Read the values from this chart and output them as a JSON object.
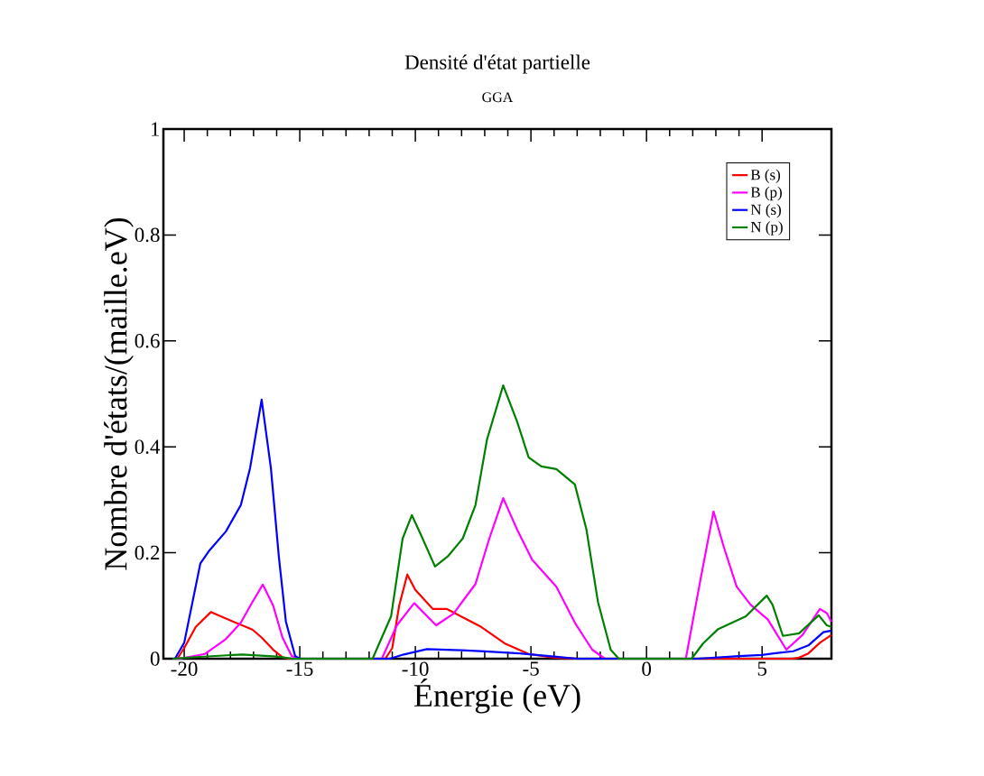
{
  "chart_data": {
    "type": "line",
    "title": "Densité d'état partielle",
    "subtitle": "GGA",
    "xlabel": "Énergie (eV)",
    "ylabel": "Nombre d'états/(maille.eV)",
    "xlim": [
      -20.9,
      8
    ],
    "ylim": [
      0,
      1
    ],
    "xticks": [
      -20,
      -15,
      -10,
      -5,
      0,
      5
    ],
    "yticks": [
      0,
      0.2,
      0.4,
      0.6,
      0.8,
      1
    ],
    "legend": "top right",
    "marker": "none",
    "line_style": "solid",
    "series": [
      {
        "name": "B (s)",
        "color": "#ff0000",
        "x": [
          -20.5,
          -20.3,
          -20,
          -19.5,
          -18.85,
          -18.1,
          -17.05,
          -16.65,
          -16.15,
          -15.75,
          -15.5,
          -11.3,
          -11,
          -10.7,
          -10.35,
          -10,
          -9.25,
          -8.65,
          -7.15,
          -6.1,
          -5.1,
          -4,
          -3,
          6.3,
          6.6,
          7,
          7.5,
          8
        ],
        "values": [
          0,
          0,
          0.02,
          0.06,
          0.088,
          0.074,
          0.055,
          0.04,
          0.017,
          0.003,
          0,
          0,
          0.02,
          0.1,
          0.159,
          0.13,
          0.094,
          0.094,
          0.06,
          0.028,
          0.009,
          0.002,
          0,
          0,
          0.002,
          0.01,
          0.03,
          0.045
        ]
      },
      {
        "name": "B (p)",
        "color": "#ff00ff",
        "x": [
          -20.5,
          -20.2,
          -19.1,
          -18.2,
          -17.55,
          -17.05,
          -16.6,
          -16.15,
          -15.75,
          -15.35,
          -15,
          -11.45,
          -10.8,
          -10.05,
          -9.1,
          -8.35,
          -7.4,
          -6.8,
          -6.2,
          -5.6,
          -4.95,
          -3.9,
          -3.1,
          -2.35,
          -1.8,
          1.7,
          2.35,
          2.9,
          3.35,
          3.9,
          4.5,
          5.25,
          6.05,
          6.75,
          7.5,
          7.8,
          8
        ],
        "values": [
          0,
          0,
          0.009,
          0.037,
          0.068,
          0.107,
          0.14,
          0.1,
          0.04,
          0.005,
          0,
          0,
          0.063,
          0.105,
          0.063,
          0.085,
          0.141,
          0.227,
          0.303,
          0.244,
          0.187,
          0.136,
          0.068,
          0.017,
          0,
          0,
          0.153,
          0.278,
          0.21,
          0.136,
          0.102,
          0.074,
          0.017,
          0.045,
          0.094,
          0.086,
          0.07
        ]
      },
      {
        "name": "N (s)",
        "color": "#0000ff",
        "x": [
          -20.5,
          -20.4,
          -20,
          -19.3,
          -18.9,
          -18.2,
          -17.55,
          -17.15,
          -16.65,
          -16.25,
          -15.9,
          -15.6,
          -15.2,
          -15,
          -11.1,
          -10.5,
          -9.5,
          -8,
          -7,
          -5.5,
          -4,
          -3,
          2.2,
          4,
          5,
          5.5,
          6.35,
          7,
          7.65,
          8
        ],
        "values": [
          0,
          0,
          0.03,
          0.18,
          0.205,
          0.24,
          0.29,
          0.36,
          0.489,
          0.36,
          0.19,
          0.07,
          0.005,
          0,
          0,
          0.008,
          0.018,
          0.016,
          0.014,
          0.01,
          0.004,
          0,
          0,
          0.005,
          0.007,
          0.01,
          0.014,
          0.025,
          0.05,
          0.053
        ]
      },
      {
        "name": "N (p)",
        "color": "#008000",
        "x": [
          -20.5,
          -19.5,
          -17.5,
          -16,
          -15.3,
          -11.85,
          -11.05,
          -10.55,
          -10.15,
          -9.75,
          -9.15,
          -8.6,
          -7.95,
          -7.4,
          -6.9,
          -6.2,
          -5.6,
          -5.1,
          -4.55,
          -3.9,
          -3.1,
          -2.6,
          -2.1,
          -1.55,
          -1.2,
          1.95,
          2.45,
          3.1,
          4.3,
          5.2,
          5.45,
          5.9,
          6.6,
          7.45,
          7.8,
          8
        ],
        "values": [
          0,
          0.003,
          0.008,
          0.004,
          0,
          0,
          0.08,
          0.227,
          0.271,
          0.233,
          0.174,
          0.193,
          0.227,
          0.29,
          0.414,
          0.516,
          0.448,
          0.38,
          0.363,
          0.358,
          0.329,
          0.244,
          0.107,
          0.017,
          0,
          0,
          0.029,
          0.056,
          0.08,
          0.119,
          0.102,
          0.043,
          0.048,
          0.082,
          0.063,
          0.06
        ]
      }
    ]
  }
}
